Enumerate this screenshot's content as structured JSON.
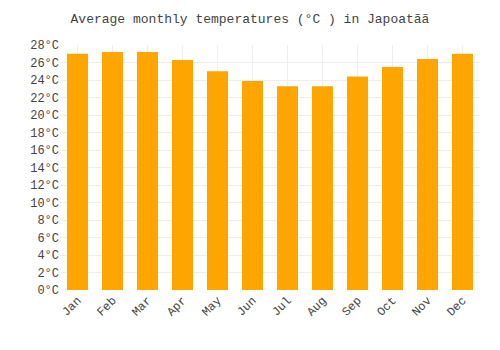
{
  "chart_data": {
    "type": "bar",
    "title": "Average monthly temperatures (°C ) in Japoatãã",
    "categories": [
      "Jan",
      "Feb",
      "Mar",
      "Apr",
      "May",
      "Jun",
      "Jul",
      "Aug",
      "Sep",
      "Oct",
      "Nov",
      "Dec"
    ],
    "values": [
      27.0,
      27.2,
      27.2,
      26.3,
      25.0,
      23.9,
      23.3,
      23.3,
      24.4,
      25.5,
      26.4,
      27.0
    ],
    "color": "#FFA500",
    "ylim": [
      0,
      28
    ],
    "yticks": [
      {
        "value": 0,
        "label": "0°C"
      },
      {
        "value": 2,
        "label": "2°C"
      },
      {
        "value": 4,
        "label": "4°C"
      },
      {
        "value": 6,
        "label": "6°C"
      },
      {
        "value": 8,
        "label": "8°C"
      },
      {
        "value": 10,
        "label": "10°C"
      },
      {
        "value": 12,
        "label": "12°C"
      },
      {
        "value": 14,
        "label": "14°C"
      },
      {
        "value": 16,
        "label": "16°C"
      },
      {
        "value": 18,
        "label": "18°C"
      },
      {
        "value": 20,
        "label": "20°C"
      },
      {
        "value": 22,
        "label": "22°C"
      },
      {
        "value": 24,
        "label": "24°C"
      },
      {
        "value": 26,
        "label": "26°C"
      },
      {
        "value": 28,
        "label": "28°C"
      }
    ],
    "grid": true
  }
}
